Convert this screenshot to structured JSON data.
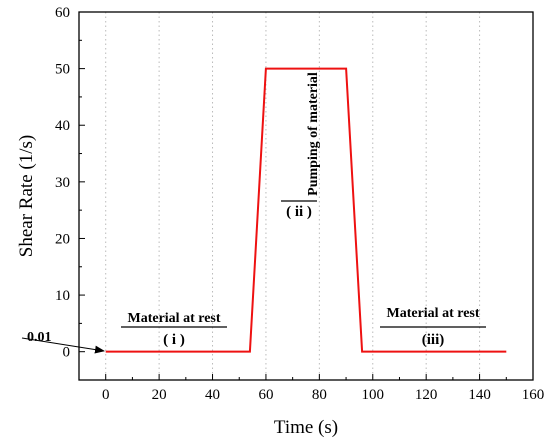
{
  "chart_data": {
    "type": "line",
    "title": "",
    "xlabel": "Time (s)",
    "ylabel": "Shear Rate (1/s)",
    "xlim": [
      -10,
      160
    ],
    "ylim": [
      -5,
      60
    ],
    "xticks": [
      0,
      20,
      40,
      60,
      80,
      100,
      120,
      140,
      160
    ],
    "yticks": [
      0,
      10,
      20,
      30,
      40,
      50,
      60
    ],
    "grid": "vertical dotted",
    "legend": "none",
    "series": [
      {
        "color": "#ee1111",
        "x": [
          0,
          54,
          60,
          90,
          96,
          150
        ],
        "y": [
          0.01,
          0.01,
          50,
          50,
          0.01,
          0.01
        ]
      }
    ],
    "annotations": {
      "pointer": {
        "text": "0.01",
        "target": [
          0,
          0.01
        ]
      },
      "phase1": {
        "label": "Material at rest",
        "index": "( i )"
      },
      "phase2": {
        "label": "Pumping of material",
        "index": "( ii )"
      },
      "phase3": {
        "label": "Material at rest",
        "index": "(iii)"
      }
    },
    "colors": {
      "line": "#ee1111",
      "grid": "#bbbbbb",
      "axis": "#000000"
    }
  }
}
